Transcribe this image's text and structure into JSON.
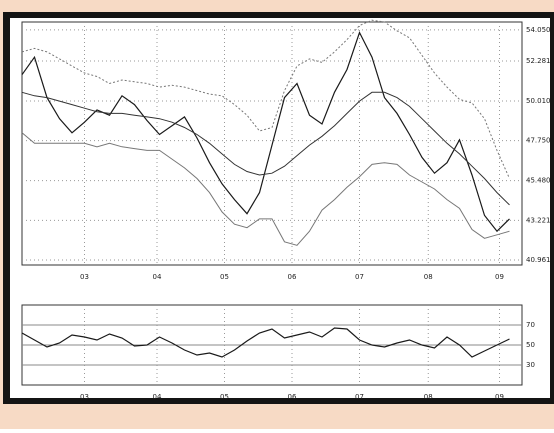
{
  "chart_data": [
    {
      "type": "line",
      "x": [
        0,
        1,
        2,
        3,
        4,
        5,
        6,
        7,
        8,
        9,
        10,
        11,
        12,
        13,
        14,
        15,
        16,
        17,
        18,
        19,
        20,
        21,
        22,
        23,
        24,
        25,
        26,
        27,
        28,
        29,
        30,
        31,
        32,
        33,
        34,
        35,
        36,
        37,
        38,
        39
      ],
      "series": [
        {
          "color": "#1a1a1a",
          "dash": false,
          "values": [
            51.5,
            52.5,
            50.2,
            49.0,
            48.2,
            48.8,
            49.5,
            49.2,
            50.3,
            49.8,
            48.9,
            48.1,
            48.6,
            49.1,
            47.9,
            46.5,
            45.3,
            44.4,
            43.6,
            44.8,
            47.5,
            50.2,
            51.0,
            49.2,
            48.7,
            50.5,
            51.8,
            53.9,
            52.5,
            50.2,
            49.3,
            48.1,
            46.8,
            45.9,
            46.5,
            47.8,
            45.8,
            43.5,
            42.6,
            43.3
          ]
        },
        {
          "color": "#333333",
          "dash": false,
          "values": [
            50.5,
            50.3,
            50.2,
            50.0,
            49.8,
            49.6,
            49.4,
            49.3,
            49.3,
            49.2,
            49.1,
            49.0,
            48.8,
            48.5,
            48.1,
            47.6,
            47.0,
            46.4,
            46.0,
            45.8,
            45.9,
            46.3,
            46.9,
            47.5,
            48.0,
            48.6,
            49.3,
            50.0,
            50.5,
            50.5,
            50.2,
            49.7,
            49.0,
            48.3,
            47.6,
            47.0,
            46.3,
            45.6,
            44.8,
            44.1
          ]
        },
        {
          "color": "#777777",
          "dash": true,
          "values": [
            52.8,
            53.0,
            52.8,
            52.4,
            52.0,
            51.6,
            51.4,
            51.0,
            51.2,
            51.1,
            51.0,
            50.8,
            50.9,
            50.8,
            50.6,
            50.4,
            50.3,
            49.8,
            49.2,
            48.3,
            48.5,
            50.6,
            52.0,
            52.4,
            52.2,
            52.8,
            53.5,
            54.3,
            54.6,
            54.5,
            54.0,
            53.6,
            52.6,
            51.6,
            50.8,
            50.1,
            49.9,
            49.0,
            47.2,
            45.6
          ]
        },
        {
          "color": "#777777",
          "dash": false,
          "values": [
            48.2,
            47.6,
            47.6,
            47.6,
            47.6,
            47.6,
            47.4,
            47.6,
            47.4,
            47.3,
            47.2,
            47.2,
            46.7,
            46.2,
            45.6,
            44.8,
            43.7,
            43.0,
            42.8,
            43.3,
            43.3,
            42.0,
            41.8,
            42.6,
            43.8,
            44.4,
            45.1,
            45.7,
            46.4,
            46.5,
            46.4,
            45.8,
            45.4,
            45.0,
            44.4,
            43.9,
            42.7,
            42.2,
            42.4,
            42.6
          ]
        }
      ],
      "xlim": [
        0,
        40
      ],
      "xticks": [
        {
          "value": 5,
          "label": "03"
        },
        {
          "value": 10.8,
          "label": "04"
        },
        {
          "value": 16.2,
          "label": "05"
        },
        {
          "value": 21.6,
          "label": "06"
        },
        {
          "value": 27,
          "label": "07"
        },
        {
          "value": 32.5,
          "label": "08"
        },
        {
          "value": 38.2,
          "label": "09"
        }
      ],
      "ylim": [
        40.68,
        54.5
      ],
      "yticks": [
        {
          "value": 54.05,
          "label": "54.050"
        },
        {
          "value": 52.281,
          "label": "52.281"
        },
        {
          "value": 50.01,
          "label": "50.010"
        },
        {
          "value": 47.75,
          "label": "47.750"
        },
        {
          "value": 45.48,
          "label": "45.480"
        },
        {
          "value": 43.221,
          "label": "43.221"
        },
        {
          "value": 40.961,
          "label": "40.961"
        }
      ],
      "grid": true
    },
    {
      "type": "line",
      "x": [
        0,
        1,
        2,
        3,
        4,
        5,
        6,
        7,
        8,
        9,
        10,
        11,
        12,
        13,
        14,
        15,
        16,
        17,
        18,
        19,
        20,
        21,
        22,
        23,
        24,
        25,
        26,
        27,
        28,
        29,
        30,
        31,
        32,
        33,
        34,
        35,
        36,
        37,
        38,
        39
      ],
      "series": [
        {
          "color": "#1a1a1a",
          "dash": false,
          "values": [
            62,
            55,
            48,
            52,
            60,
            58,
            55,
            61,
            57,
            49,
            50,
            58,
            52,
            45,
            40,
            42,
            38,
            45,
            54,
            62,
            66,
            57,
            60,
            63,
            58,
            67,
            66,
            55,
            50,
            48,
            52,
            55,
            50,
            47,
            58,
            50,
            38,
            44,
            50,
            56
          ]
        }
      ],
      "xlim": [
        0,
        40
      ],
      "xticks": [
        {
          "value": 5,
          "label": "03"
        },
        {
          "value": 10.8,
          "label": "04"
        },
        {
          "value": 16.2,
          "label": "05"
        },
        {
          "value": 21.6,
          "label": "06"
        },
        {
          "value": 27,
          "label": "07"
        },
        {
          "value": 32.5,
          "label": "08"
        },
        {
          "value": 38.2,
          "label": "09"
        }
      ],
      "ylim": [
        10,
        90
      ],
      "yticks": [
        70,
        50,
        30
      ],
      "grid": true
    }
  ]
}
